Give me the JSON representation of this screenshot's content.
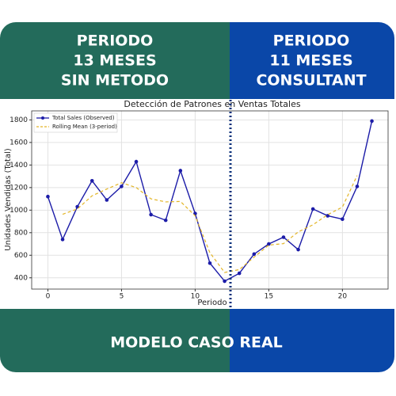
{
  "header": {
    "left": [
      "PERIODO",
      "13 MESES",
      "SIN METODO"
    ],
    "right": [
      "PERIODO",
      "11 MESES",
      "CONSULTANT"
    ]
  },
  "footer": "MODELO CASO REAL",
  "chart_data": {
    "type": "line",
    "title": "Detección de Patrones en Ventas Totales",
    "x_label": "Periodo",
    "y_label": "Unidades Vendidas (Total)",
    "x": [
      0,
      1,
      2,
      3,
      4,
      5,
      6,
      7,
      8,
      9,
      10,
      11,
      12,
      13,
      14,
      15,
      16,
      17,
      18,
      19,
      20,
      21,
      22
    ],
    "series": [
      {
        "name": "Total Sales (Observed)",
        "color": "#1c1ca8",
        "style": "solid-markers",
        "values": [
          1120,
          740,
          1030,
          1260,
          1090,
          1210,
          1430,
          960,
          910,
          1350,
          970,
          530,
          370,
          440,
          610,
          700,
          760,
          650,
          1010,
          950,
          920,
          1210,
          1790
        ]
      },
      {
        "name": "Rolling Mean (3-period)",
        "color": "#e3b526",
        "style": "dashed",
        "values": [
          null,
          963,
          1010,
          1127,
          1187,
          1243,
          1200,
          1100,
          1073,
          1077,
          950,
          623,
          447,
          473,
          583,
          690,
          703,
          807,
          870,
          960,
          1027,
          1307,
          null
        ]
      }
    ],
    "xlim": [
      -1.1,
      23.1
    ],
    "ylim": [
      300,
      1880
    ],
    "xticks": [
      0,
      5,
      10,
      15,
      20
    ],
    "yticks": [
      400,
      600,
      800,
      1000,
      1200,
      1400,
      1600,
      1800
    ],
    "grid": true,
    "legend": "upper-left"
  }
}
